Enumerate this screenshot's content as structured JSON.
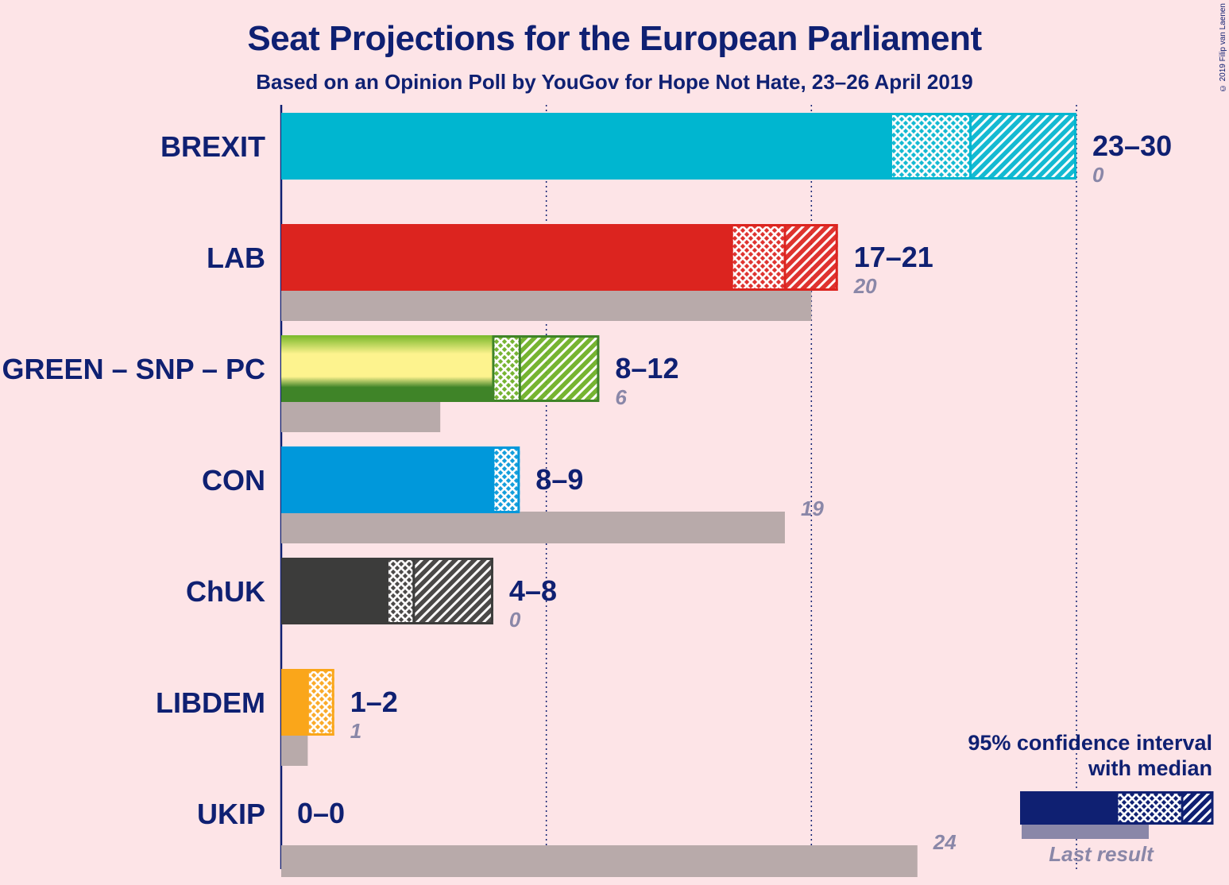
{
  "title": "Seat Projections for the European Parliament",
  "subtitle": "Based on an Opinion Poll by YouGov for Hope Not Hate, 23–26 April 2019",
  "copyright": "© 2019 Filip van Laenen",
  "legend": {
    "line1": "95% confidence interval",
    "line2": "with median",
    "last_result": "Last result"
  },
  "colors": {
    "background": "#fde4e7",
    "text": "#0f2072",
    "last_result_bar": "#b8aaaa",
    "last_result_text": "#8a87a8"
  },
  "chart_data": {
    "type": "bar",
    "orientation": "horizontal",
    "xlim": [
      0,
      30
    ],
    "gridlines": [
      10,
      20,
      30
    ],
    "series_meaning": {
      "low": "lower bound of 95% confidence interval",
      "median": "median seats",
      "high": "upper bound of 95% confidence interval",
      "last": "last result"
    },
    "parties": [
      {
        "name": "BREXIT",
        "low": 23,
        "median": 26,
        "high": 30,
        "last": 0,
        "range": "23–30",
        "last_label": "0",
        "color": "#00b6d0"
      },
      {
        "name": "LAB",
        "low": 17,
        "median": 19,
        "high": 21,
        "last": 20,
        "range": "17–21",
        "last_label": "20",
        "color": "#dc241f"
      },
      {
        "name": "GREEN – SNP – PC",
        "low": 8,
        "median": 9,
        "high": 12,
        "last": 6,
        "range": "8–12",
        "last_label": "6",
        "color": "#6ab023",
        "multicolor": [
          "#78b82a",
          "#fdf38e",
          "#3f8428"
        ]
      },
      {
        "name": "CON",
        "low": 8,
        "median": 9,
        "high": 9,
        "last": 19,
        "range": "8–9",
        "last_label": "19",
        "color": "#0098db"
      },
      {
        "name": "ChUK",
        "low": 4,
        "median": 5,
        "high": 8,
        "last": 0,
        "range": "4–8",
        "last_label": "0",
        "color": "#3c3c3b"
      },
      {
        "name": "LIBDEM",
        "low": 1,
        "median": 2,
        "high": 2,
        "last": 1,
        "range": "1–2",
        "last_label": "1",
        "color": "#faa61a"
      },
      {
        "name": "UKIP",
        "low": 0,
        "median": 0,
        "high": 0,
        "last": 24,
        "range": "0–0",
        "last_label": "24",
        "color": "#70147a"
      }
    ]
  }
}
